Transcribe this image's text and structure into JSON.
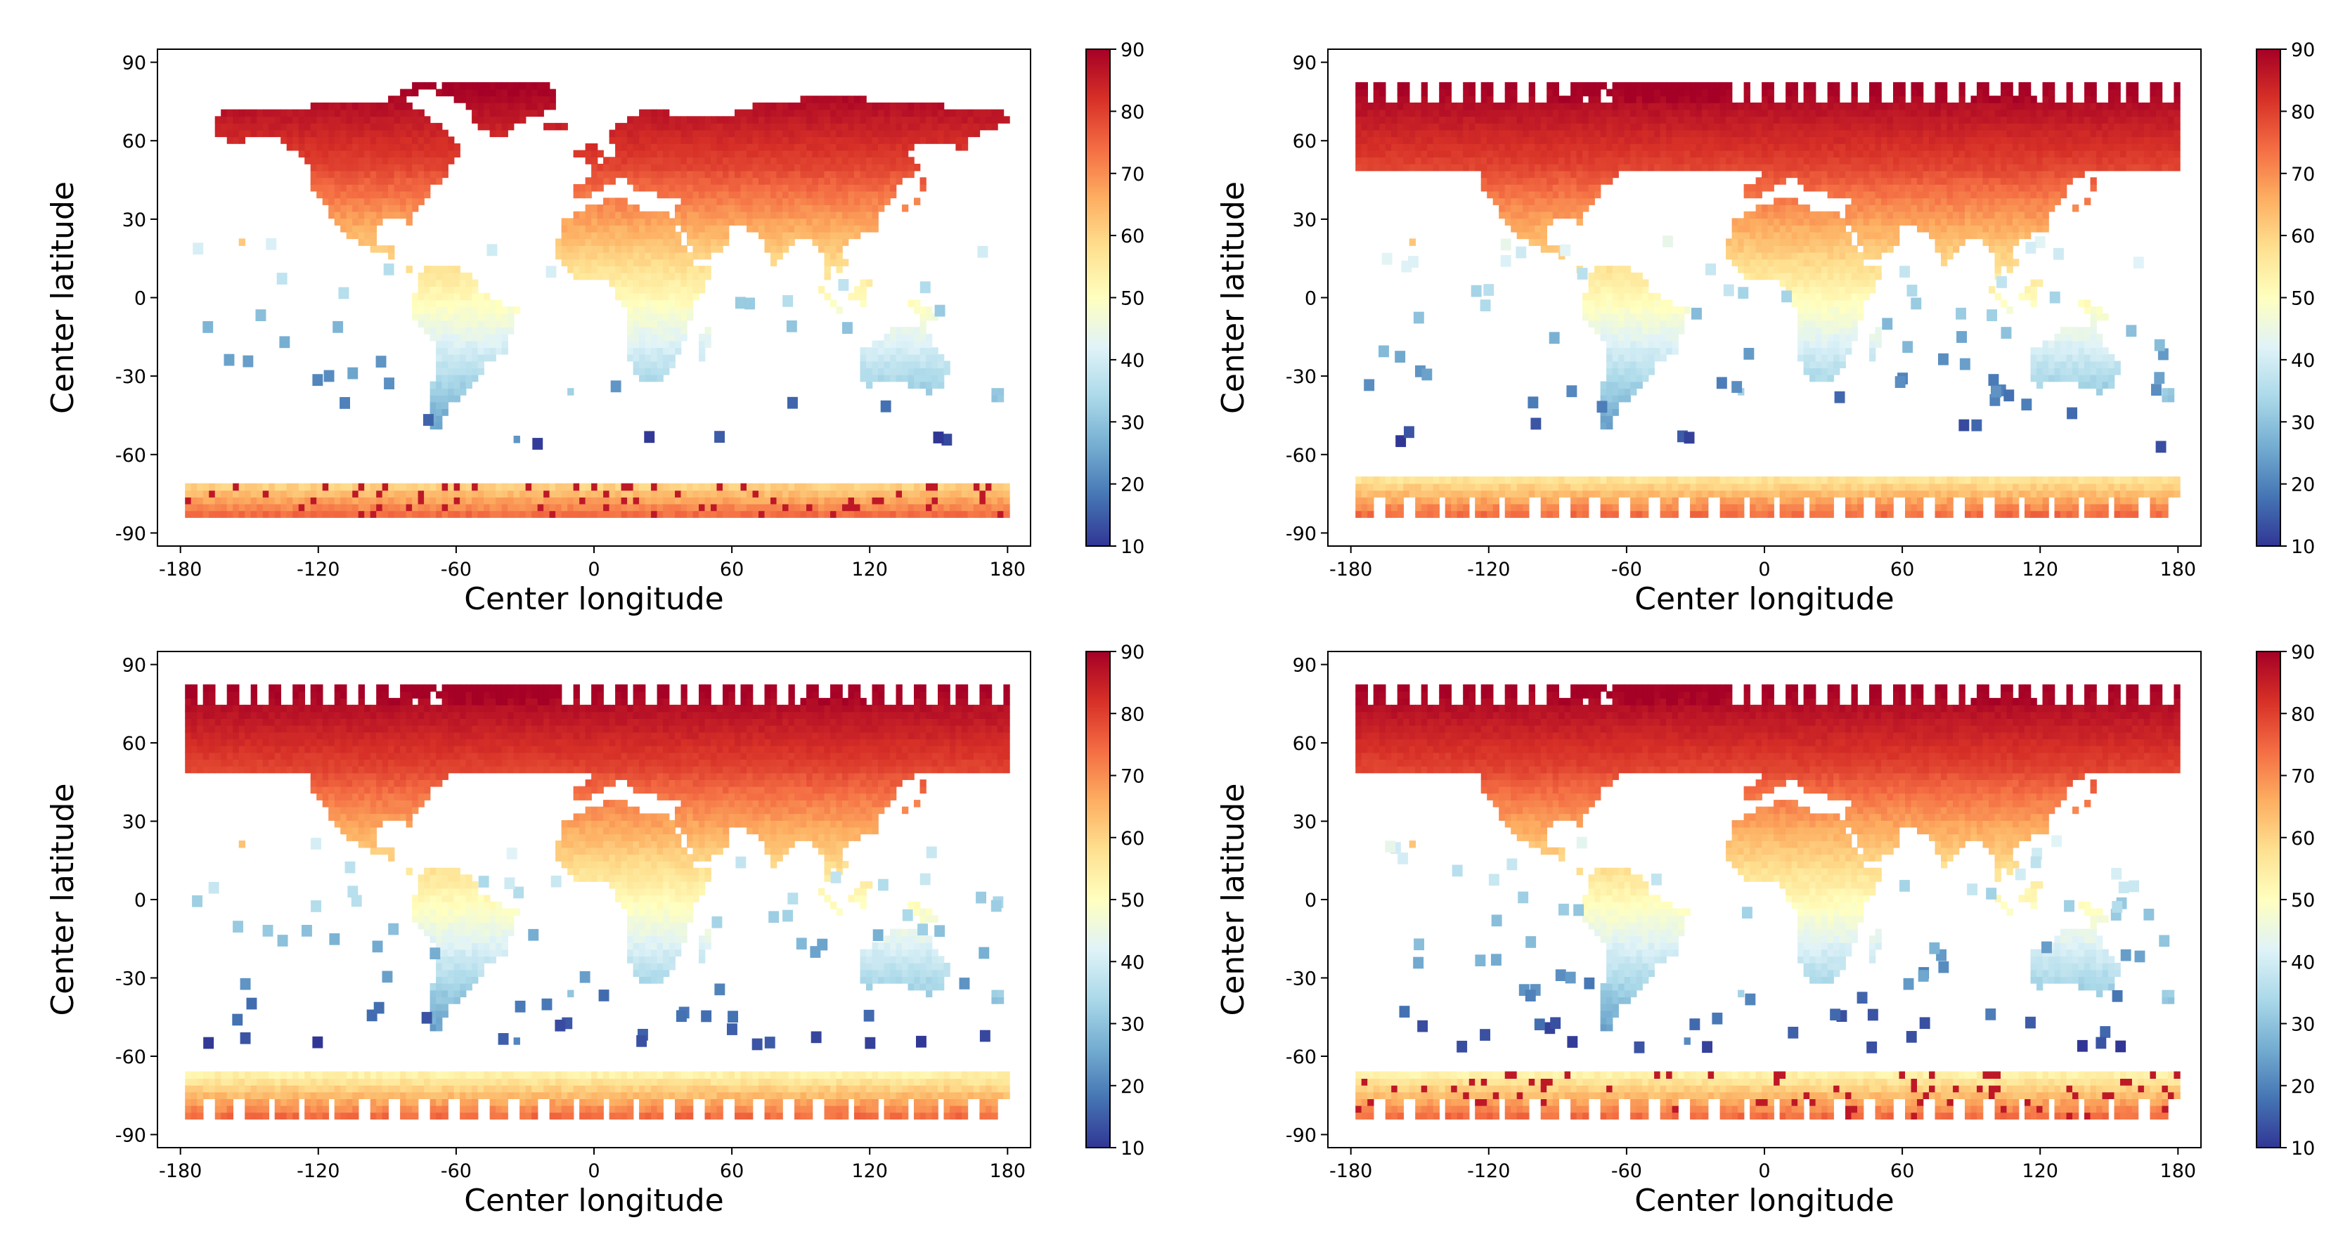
{
  "chart_data": [
    {
      "type": "scatter",
      "panel": "top-left",
      "xlabel": "Center longitude",
      "ylabel": "Center latitude",
      "xlim": [
        -190,
        190
      ],
      "ylim": [
        -95,
        95
      ],
      "xticks": [
        -180,
        -120,
        -60,
        0,
        60,
        120,
        180
      ],
      "yticks": [
        90,
        60,
        30,
        0,
        -30,
        -60,
        -90
      ],
      "colorbar": {
        "min": 10,
        "max": 90,
        "ticks": [
          90,
          80,
          70,
          60,
          50,
          40,
          30,
          20,
          10
        ],
        "colormap": "RdYlBu_r"
      },
      "coverage": "land-dense",
      "south_band": [
        -84,
        -72
      ]
    },
    {
      "type": "scatter",
      "panel": "top-right",
      "xlabel": "Center longitude",
      "ylabel": "Center latitude",
      "xlim": [
        -190,
        190
      ],
      "ylim": [
        -95,
        95
      ],
      "xticks": [
        -180,
        -120,
        -60,
        0,
        60,
        120,
        180
      ],
      "yticks": [
        90,
        60,
        30,
        0,
        -30,
        -60,
        -90
      ],
      "colorbar": {
        "min": 10,
        "max": 90,
        "ticks": [
          90,
          80,
          70,
          60,
          50,
          40,
          30,
          20,
          10
        ],
        "colormap": "RdYlBu_r"
      },
      "coverage": "swath",
      "south_band": [
        -84,
        -70
      ]
    },
    {
      "type": "scatter",
      "panel": "bottom-left",
      "xlabel": "Center longitude",
      "ylabel": "Center latitude",
      "xlim": [
        -190,
        190
      ],
      "ylim": [
        -95,
        95
      ],
      "xticks": [
        -180,
        -120,
        -60,
        0,
        60,
        120,
        180
      ],
      "yticks": [
        90,
        60,
        30,
        0,
        -30,
        -60,
        -90
      ],
      "colorbar": {
        "min": 10,
        "max": 90,
        "ticks": [
          90,
          80,
          70,
          60,
          50,
          40,
          30,
          20,
          10
        ],
        "colormap": "RdYlBu_r"
      },
      "coverage": "swath",
      "south_band": [
        -84,
        -66
      ]
    },
    {
      "type": "scatter",
      "panel": "bottom-right",
      "xlabel": "Center longitude",
      "ylabel": "Center latitude",
      "xlim": [
        -190,
        190
      ],
      "ylim": [
        -95,
        95
      ],
      "xticks": [
        -180,
        -120,
        -60,
        0,
        60,
        120,
        180
      ],
      "yticks": [
        90,
        60,
        30,
        0,
        -30,
        -60,
        -90
      ],
      "colorbar": {
        "min": 10,
        "max": 90,
        "ticks": [
          90,
          80,
          70,
          60,
          50,
          40,
          30,
          20,
          10
        ],
        "colormap": "RdYlBu_r"
      },
      "coverage": "swath-dense",
      "south_band": [
        -84,
        -66
      ]
    }
  ]
}
